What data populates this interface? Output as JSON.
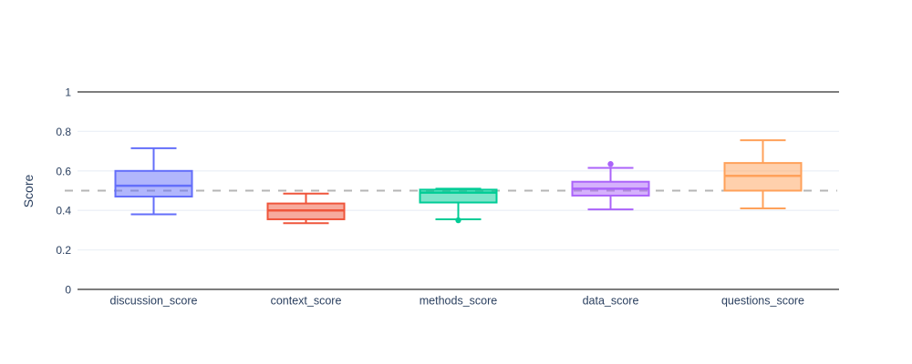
{
  "chart_data": {
    "type": "box",
    "title": "",
    "xlabel": "",
    "ylabel": "Score",
    "ylim": [
      0,
      1
    ],
    "yticks": [
      {
        "value": 0,
        "label": "0"
      },
      {
        "value": 0.2,
        "label": "0.2"
      },
      {
        "value": 0.4,
        "label": "0.4"
      },
      {
        "value": 0.6,
        "label": "0.6"
      },
      {
        "value": 0.8,
        "label": "0.8"
      },
      {
        "value": 1,
        "label": "1"
      }
    ],
    "categories": [
      "discussion_score",
      "context_score",
      "methods_score",
      "data_score",
      "questions_score"
    ],
    "series": [
      {
        "name": "discussion_score",
        "color": "#636EFA",
        "whisker_low": 0.38,
        "q1": 0.47,
        "median": 0.525,
        "q3": 0.6,
        "whisker_high": 0.715,
        "outliers": []
      },
      {
        "name": "context_score",
        "color": "#EF553B",
        "whisker_low": 0.335,
        "q1": 0.355,
        "median": 0.4,
        "q3": 0.435,
        "whisker_high": 0.485,
        "outliers": []
      },
      {
        "name": "methods_score",
        "color": "#00CC96",
        "whisker_low": 0.355,
        "q1": 0.44,
        "median": 0.49,
        "q3": 0.505,
        "whisker_high": 0.51,
        "outliers": [
          0.35
        ]
      },
      {
        "name": "data_score",
        "color": "#AB63FA",
        "whisker_low": 0.405,
        "q1": 0.475,
        "median": 0.51,
        "q3": 0.545,
        "whisker_high": 0.615,
        "outliers": [
          0.635
        ]
      },
      {
        "name": "questions_score",
        "color": "#FFA15A",
        "whisker_low": 0.41,
        "q1": 0.5,
        "median": 0.575,
        "q3": 0.64,
        "whisker_high": 0.755,
        "outliers": []
      }
    ],
    "reference_line": {
      "value": 0.5,
      "style": "dashed",
      "color": "#b5b5b5"
    },
    "frame_lines": {
      "values": [
        0,
        1
      ],
      "color": "#7d7d7d"
    },
    "grid": {
      "show": true,
      "color": "#edf1f7"
    },
    "axis_text_color": "#2a3f5f",
    "legend_position": "none",
    "fill_opacity_note": "box fill = series color at 50% opacity"
  }
}
